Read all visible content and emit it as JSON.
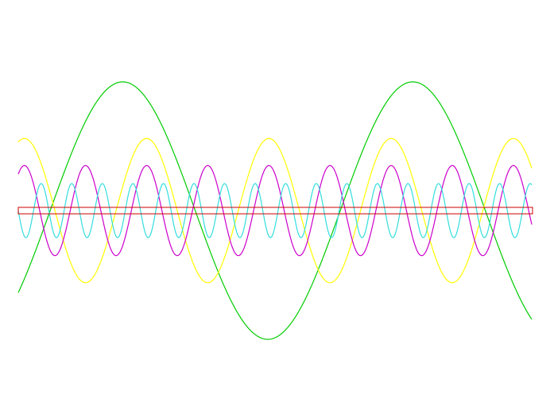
{
  "chart_data": {
    "type": "line",
    "title": "",
    "xlabel": "",
    "ylabel": "",
    "grid": false,
    "legend": "none",
    "xlim": [
      0,
      1
    ],
    "ylim": [
      -1.25,
      1.25
    ],
    "x_samples": 600,
    "series": [
      {
        "key": "green",
        "color": "#00cc00",
        "amplitude": 1.0,
        "cycles": 1.77,
        "phase_cycles": 0.36
      },
      {
        "key": "yellow",
        "color": "#ffff00",
        "amplitude": 0.56,
        "cycles": 4.2,
        "phase_cycles": 0.05
      },
      {
        "key": "magenta",
        "color": "#cc00cc",
        "amplitude": 0.35,
        "cycles": 8.4,
        "phase_cycles": 0.1
      },
      {
        "key": "cyan",
        "color": "#33dddd",
        "amplitude": 0.21,
        "cycles": 16.8,
        "phase_cycles": 0.75
      }
    ],
    "band": {
      "color": "#cc0000",
      "y_low": -0.025,
      "y_high": 0.025
    }
  }
}
